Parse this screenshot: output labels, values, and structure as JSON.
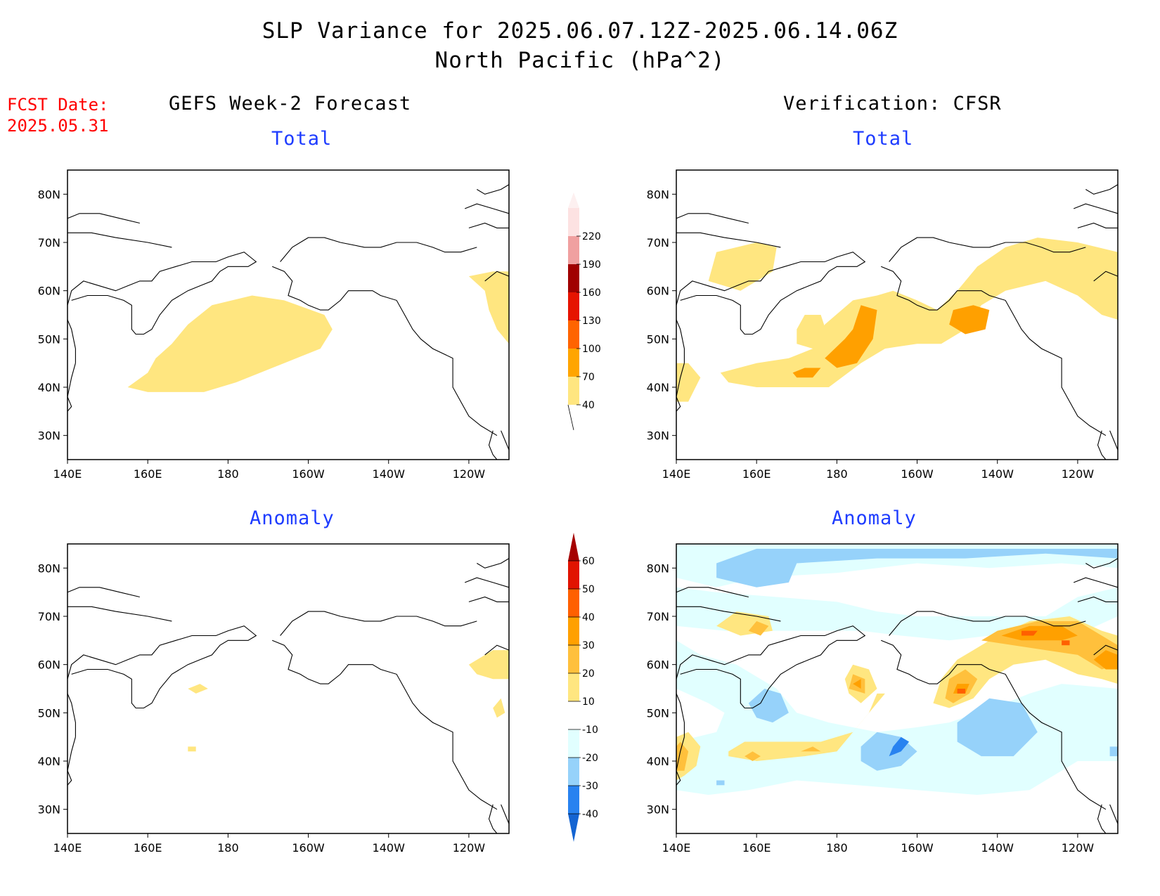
{
  "title": {
    "line1": "SLP Variance for 2025.06.07.12Z-2025.06.14.06Z",
    "line2": "North Pacific (hPa^2)"
  },
  "fcst_date": {
    "label": "FCST Date:",
    "value": "2025.05.31"
  },
  "columns": {
    "left": "GEFS Week-2 Forecast",
    "right": "Verification: CFSR"
  },
  "panel_titles": {
    "left_top": "Total",
    "right_top": "Total",
    "left_bottom": "Anomaly",
    "right_bottom": "Anomaly"
  },
  "axes": {
    "lon_ticks": [
      {
        "value": 140,
        "label": "140E"
      },
      {
        "value": 160,
        "label": "160E"
      },
      {
        "value": 180,
        "label": "180"
      },
      {
        "value": 200,
        "label": "160W"
      },
      {
        "value": 220,
        "label": "140W"
      },
      {
        "value": 240,
        "label": "120W"
      }
    ],
    "lat_ticks": [
      {
        "value": 30,
        "label": "30N"
      },
      {
        "value": 40,
        "label": "40N"
      },
      {
        "value": 50,
        "label": "50N"
      },
      {
        "value": 60,
        "label": "60N"
      },
      {
        "value": 70,
        "label": "70N"
      },
      {
        "value": 80,
        "label": "80N"
      }
    ],
    "lon_range": [
      140,
      250
    ],
    "lat_range": [
      25,
      85
    ]
  },
  "colorbars": {
    "total": {
      "labels": [
        "40",
        "70",
        "100",
        "130",
        "160",
        "190",
        "220"
      ],
      "colors": [
        "#ffe680",
        "#ffa500",
        "#ff6400",
        "#e61400",
        "#a00000",
        "#f0a0a0",
        "#fde2e2"
      ]
    },
    "anomaly": {
      "labels": [
        "-40",
        "-30",
        "-20",
        "-10",
        "10",
        "20",
        "30",
        "40",
        "50",
        "60"
      ],
      "colors": [
        "#1464d2",
        "#2882f0",
        "#96d2fa",
        "#e1ffff",
        "#ffffff",
        "#ffe680",
        "#ffc03c",
        "#ffa000",
        "#ff6000",
        "#e11400",
        "#a50000"
      ]
    }
  }
}
